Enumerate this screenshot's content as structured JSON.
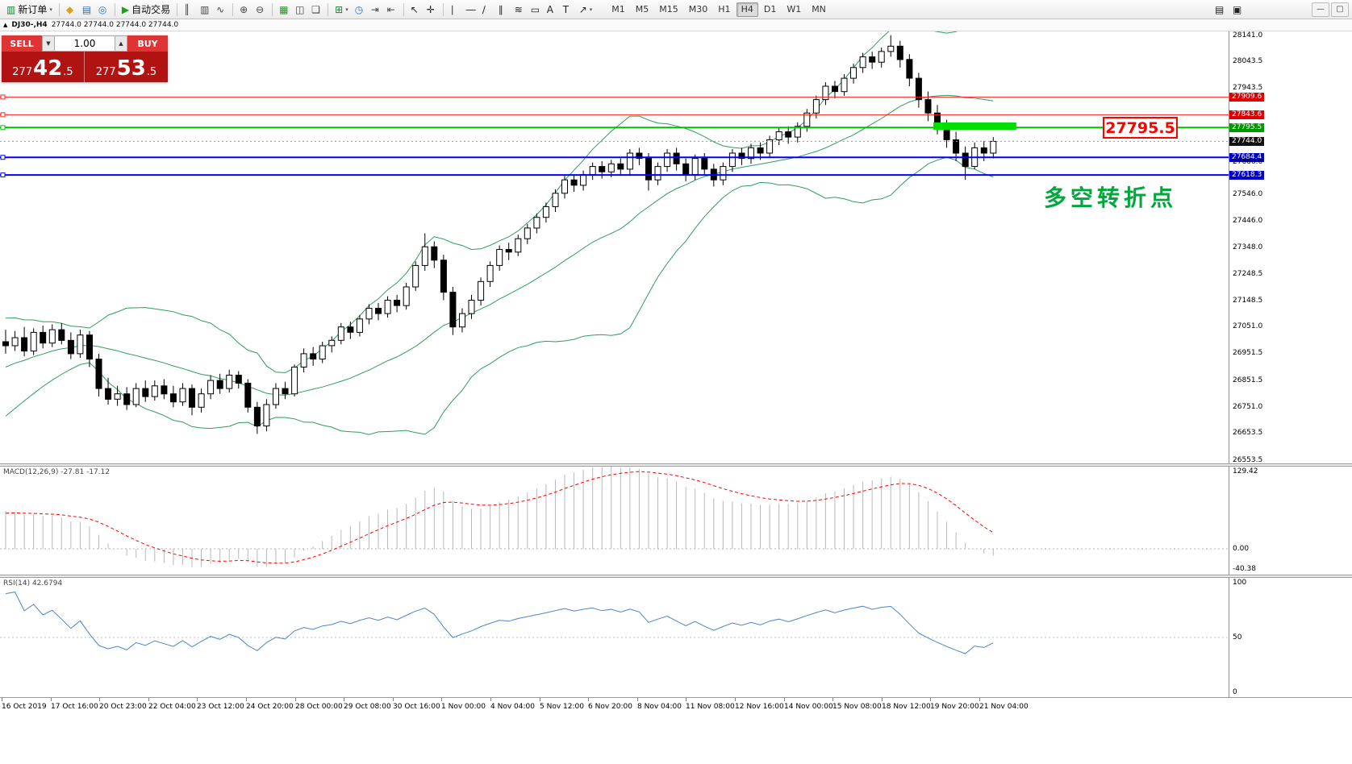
{
  "toolbar": {
    "groups": [
      {
        "items": [
          {
            "name": "new-order",
            "glyph": "▥",
            "color": "#1a7f37",
            "label": "新订单",
            "dropdown": true
          }
        ]
      },
      {
        "items": [
          {
            "name": "market-watch",
            "glyph": "◆",
            "color": "#d9a01f"
          },
          {
            "name": "data-window",
            "glyph": "▤",
            "color": "#2f6fb7"
          },
          {
            "name": "navigator",
            "glyph": "◎",
            "color": "#2f6fb7"
          }
        ]
      },
      {
        "items": [
          {
            "name": "auto-trading",
            "glyph": "▶",
            "color": "#17a317",
            "label": "自动交易"
          }
        ]
      },
      {
        "items": [
          {
            "name": "bar-chart-type",
            "glyph": "║",
            "color": "#444444"
          },
          {
            "name": "candlestick-chart-type",
            "glyph": "▥",
            "color": "#444444"
          },
          {
            "name": "line-chart-type",
            "glyph": "∿",
            "color": "#444444"
          }
        ]
      },
      {
        "items": [
          {
            "name": "zoom-in",
            "glyph": "⊕",
            "color": "#444444"
          },
          {
            "name": "zoom-out",
            "glyph": "⊖",
            "color": "#444444"
          }
        ]
      },
      {
        "items": [
          {
            "name": "grid",
            "glyph": "▦",
            "color": "#2f8f2f"
          },
          {
            "name": "tile-windows",
            "glyph": "◫",
            "color": "#444444"
          },
          {
            "name": "cascade-windows",
            "glyph": "❏",
            "color": "#444444"
          }
        ]
      },
      {
        "items": [
          {
            "name": "new-chart",
            "glyph": "⊞",
            "color": "#1a7f37",
            "dropdown": true
          },
          {
            "name": "period-clock",
            "glyph": "◷",
            "color": "#2f6fb7"
          },
          {
            "name": "auto-scroll",
            "glyph": "⇥",
            "color": "#444444"
          },
          {
            "name": "chart-shift",
            "glyph": "⇤",
            "color": "#444444"
          }
        ]
      },
      {
        "items": [
          {
            "name": "cursor",
            "glyph": "↖",
            "color": "#222222"
          },
          {
            "name": "crosshair",
            "glyph": "✛",
            "color": "#222222"
          }
        ]
      },
      {
        "items": [
          {
            "name": "vertical-line-tool",
            "glyph": "∣",
            "color": "#222222"
          },
          {
            "name": "horizontal-line-tool",
            "glyph": "―",
            "color": "#222222"
          },
          {
            "name": "trendline-tool",
            "glyph": "∕",
            "color": "#222222"
          },
          {
            "name": "channel-tool",
            "glyph": "∥",
            "color": "#222222"
          },
          {
            "name": "fibonacci-tool",
            "glyph": "≋",
            "color": "#222222"
          },
          {
            "name": "shapes-tool",
            "glyph": "▭",
            "color": "#222222"
          },
          {
            "name": "text-tool",
            "glyph": "A",
            "color": "#222222"
          },
          {
            "name": "text-label-tool",
            "glyph": "T",
            "color": "#222222"
          },
          {
            "name": "arrows-tool",
            "glyph": "↗",
            "color": "#222222",
            "dropdown": true
          }
        ]
      }
    ],
    "timeframes": {
      "active": "H4",
      "items": [
        "M1",
        "M5",
        "M15",
        "M30",
        "H1",
        "H4",
        "D1",
        "W1",
        "MN"
      ]
    },
    "right_items": [
      {
        "name": "print",
        "glyph": "▤"
      },
      {
        "name": "print-preview",
        "glyph": "▣"
      }
    ],
    "window_controls": [
      {
        "name": "minimize-window",
        "glyph": "—"
      },
      {
        "name": "restore-window",
        "glyph": "▢"
      }
    ]
  },
  "chart": {
    "title": {
      "marker": "▲",
      "text": "DJ30-,H4",
      "ohlc": "27744.0 27744.0 27744.0 27744.0"
    },
    "trade_panel": {
      "sell_label": "SELL",
      "buy_label": "BUY",
      "volume": "1.00",
      "spin_down": "▼",
      "spin_up": "▲",
      "sell_price": {
        "prefix": "277",
        "big": "42",
        "suffix": ".5"
      },
      "buy_price": {
        "prefix": "277",
        "big": "53",
        "suffix": ".5"
      }
    },
    "annotations": {
      "price_callout": "27795.5",
      "turning_point": "多空转折点"
    }
  },
  "panels": {
    "macd_label": "MACD(12,26,9) -27.81 -17.12",
    "rsi_label": "RSI(14) 42.6794"
  },
  "chart_data": {
    "type": "candlestick",
    "symbol": "DJ30-",
    "period": "H4",
    "ohlc_display": [
      27744.0,
      27744.0,
      27744.0,
      27744.0
    ],
    "bid": 27742.5,
    "ask": 27753.5,
    "candles": [
      [
        26995,
        27040,
        26950,
        26980
      ],
      [
        26980,
        27035,
        26960,
        27010
      ],
      [
        27010,
        27050,
        26940,
        26960
      ],
      [
        26960,
        27045,
        26945,
        27030
      ],
      [
        27030,
        27055,
        26970,
        26990
      ],
      [
        26990,
        27060,
        26975,
        27040
      ],
      [
        27040,
        27065,
        26985,
        27000
      ],
      [
        27000,
        27030,
        26930,
        26950
      ],
      [
        26950,
        27040,
        26935,
        27020
      ],
      [
        27020,
        27035,
        26900,
        26930
      ],
      [
        26930,
        26950,
        26790,
        26820
      ],
      [
        26820,
        26860,
        26760,
        26780
      ],
      [
        26780,
        26830,
        26755,
        26800
      ],
      [
        26800,
        26825,
        26740,
        26760
      ],
      [
        26760,
        26840,
        26750,
        26820
      ],
      [
        26820,
        26850,
        26770,
        26790
      ],
      [
        26790,
        26850,
        26775,
        26830
      ],
      [
        26830,
        26855,
        26780,
        26800
      ],
      [
        26800,
        26830,
        26750,
        26770
      ],
      [
        26770,
        26840,
        26755,
        26820
      ],
      [
        26820,
        26835,
        26720,
        26750
      ],
      [
        26750,
        26820,
        26730,
        26800
      ],
      [
        26800,
        26870,
        26780,
        26850
      ],
      [
        26850,
        26875,
        26800,
        26820
      ],
      [
        26820,
        26890,
        26805,
        26870
      ],
      [
        26870,
        26885,
        26820,
        26840
      ],
      [
        26840,
        26855,
        26730,
        26750
      ],
      [
        26750,
        26770,
        26650,
        26680
      ],
      [
        26680,
        26780,
        26660,
        26760
      ],
      [
        26760,
        26840,
        26745,
        26820
      ],
      [
        26820,
        26845,
        26780,
        26800
      ],
      [
        26800,
        26910,
        26790,
        26900
      ],
      [
        26900,
        26970,
        26880,
        26950
      ],
      [
        26950,
        26975,
        26905,
        26930
      ],
      [
        26930,
        26995,
        26915,
        26980
      ],
      [
        26980,
        27015,
        26955,
        27000
      ],
      [
        27000,
        27065,
        26985,
        27050
      ],
      [
        27050,
        27070,
        27005,
        27030
      ],
      [
        27030,
        27095,
        27015,
        27080
      ],
      [
        27080,
        27135,
        27060,
        27120
      ],
      [
        27120,
        27140,
        27075,
        27100
      ],
      [
        27100,
        27165,
        27085,
        27150
      ],
      [
        27150,
        27170,
        27105,
        27130
      ],
      [
        27130,
        27215,
        27115,
        27200
      ],
      [
        27200,
        27295,
        27185,
        27280
      ],
      [
        27280,
        27400,
        27260,
        27350
      ],
      [
        27350,
        27370,
        27270,
        27300
      ],
      [
        27300,
        27320,
        27150,
        27180
      ],
      [
        27180,
        27200,
        27020,
        27050
      ],
      [
        27050,
        27120,
        27030,
        27100
      ],
      [
        27100,
        27170,
        27080,
        27150
      ],
      [
        27150,
        27235,
        27130,
        27220
      ],
      [
        27220,
        27295,
        27200,
        27280
      ],
      [
        27280,
        27355,
        27260,
        27340
      ],
      [
        27340,
        27365,
        27300,
        27330
      ],
      [
        27330,
        27395,
        27315,
        27380
      ],
      [
        27380,
        27435,
        27360,
        27420
      ],
      [
        27420,
        27475,
        27400,
        27460
      ],
      [
        27460,
        27515,
        27440,
        27500
      ],
      [
        27500,
        27565,
        27480,
        27550
      ],
      [
        27550,
        27615,
        27530,
        27600
      ],
      [
        27600,
        27620,
        27555,
        27580
      ],
      [
        27580,
        27635,
        27560,
        27620
      ],
      [
        27620,
        27665,
        27600,
        27650
      ],
      [
        27650,
        27670,
        27605,
        27630
      ],
      [
        27630,
        27675,
        27610,
        27660
      ],
      [
        27660,
        27680,
        27615,
        27640
      ],
      [
        27640,
        27715,
        27620,
        27700
      ],
      [
        27700,
        27720,
        27655,
        27680
      ],
      [
        27680,
        27700,
        27560,
        27600
      ],
      [
        27600,
        27665,
        27580,
        27650
      ],
      [
        27650,
        27715,
        27630,
        27700
      ],
      [
        27700,
        27720,
        27635,
        27660
      ],
      [
        27660,
        27680,
        27595,
        27620
      ],
      [
        27620,
        27695,
        27600,
        27680
      ],
      [
        27680,
        27700,
        27620,
        27640
      ],
      [
        27640,
        27660,
        27575,
        27600
      ],
      [
        27600,
        27665,
        27580,
        27650
      ],
      [
        27650,
        27715,
        27630,
        27700
      ],
      [
        27700,
        27720,
        27655,
        27680
      ],
      [
        27680,
        27735,
        27660,
        27720
      ],
      [
        27720,
        27740,
        27675,
        27700
      ],
      [
        27700,
        27765,
        27685,
        27750
      ],
      [
        27750,
        27795,
        27730,
        27780
      ],
      [
        27780,
        27800,
        27735,
        27760
      ],
      [
        27760,
        27815,
        27740,
        27800
      ],
      [
        27800,
        27865,
        27780,
        27850
      ],
      [
        27850,
        27915,
        27830,
        27900
      ],
      [
        27900,
        27965,
        27880,
        27950
      ],
      [
        27950,
        27970,
        27905,
        27930
      ],
      [
        27930,
        27995,
        27915,
        27980
      ],
      [
        27980,
        28035,
        27960,
        28020
      ],
      [
        28020,
        28075,
        28000,
        28060
      ],
      [
        28060,
        28080,
        28015,
        28040
      ],
      [
        28040,
        28095,
        28020,
        28080
      ],
      [
        28080,
        28141,
        28060,
        28100
      ],
      [
        28100,
        28120,
        28020,
        28050
      ],
      [
        28050,
        28070,
        27950,
        27980
      ],
      [
        27980,
        28000,
        27870,
        27900
      ],
      [
        27900,
        27930,
        27820,
        27850
      ],
      [
        27850,
        27880,
        27770,
        27800
      ],
      [
        27800,
        27825,
        27720,
        27750
      ],
      [
        27750,
        27780,
        27670,
        27700
      ],
      [
        27700,
        27725,
        27600,
        27650
      ],
      [
        27650,
        27740,
        27640,
        27720
      ],
      [
        27720,
        27745,
        27670,
        27700
      ],
      [
        27700,
        27760,
        27680,
        27744
      ]
    ],
    "indicators": {
      "bollinger": {
        "period": 20,
        "deviation": 2,
        "color": "#2e9e5b"
      },
      "macd": {
        "params": [
          12,
          26,
          9
        ],
        "current_values": [
          -27.81,
          -17.12
        ],
        "axis_labels": [
          "129.42",
          "0.00",
          "-40.38"
        ],
        "histogram_color": "#b8b8b8",
        "signal_color": "#ff0000"
      },
      "rsi": {
        "period": 14,
        "current_value": 42.6794,
        "axis_labels": [
          "100",
          "50",
          "0"
        ],
        "line_color": "#4a86c8"
      }
    },
    "horizontal_lines": [
      {
        "price": 27909.6,
        "label": "27909.6",
        "color": "#ff2020",
        "badge_color": "#dd0000",
        "width": 1
      },
      {
        "price": 27843.6,
        "label": "27843.6",
        "color": "#ff2020",
        "badge_color": "#dd0000",
        "width": 1
      },
      {
        "price": 27795.5,
        "label": "27795.5",
        "color": "#00c000",
        "badge_color": "#009900",
        "width": 2
      },
      {
        "price": 27744.0,
        "label": "27744.0",
        "color": "#999999",
        "badge_color": "#111111",
        "width": 1,
        "style": "dotted",
        "role": "current-price"
      },
      {
        "price": 27684.4,
        "label": "27684.4",
        "color": "#0000ff",
        "badge_color": "#0000cc",
        "width": 2
      },
      {
        "price": 27618.3,
        "label": "27618.3",
        "color": "#0000ff",
        "badge_color": "#0000cc",
        "width": 2
      }
    ],
    "highlight_bar": {
      "from_bar": 100,
      "to_bar": 107,
      "price": 27801,
      "color": "#00df00"
    },
    "y_ticks": [
      "28141.0",
      "28043.5",
      "27943.5",
      "27666.0",
      "27546.0",
      "27446.0",
      "27348.0",
      "27248.5",
      "27148.5",
      "27051.0",
      "26951.5",
      "26851.5",
      "26751.0",
      "26653.5",
      "26553.5"
    ],
    "x_labels": [
      "16 Oct 2019",
      "17 Oct 16:00",
      "20 Oct 23:00",
      "22 Oct 04:00",
      "23 Oct 12:00",
      "24 Oct 20:00",
      "28 Oct 00:00",
      "29 Oct 08:00",
      "30 Oct 16:00",
      "1 Nov 00:00",
      "4 Nov 04:00",
      "5 Nov 12:00",
      "6 Nov 20:00",
      "8 Nov 04:00",
      "11 Nov 08:00",
      "12 Nov 16:00",
      "14 Nov 00:00",
      "15 Nov 08:00",
      "18 Nov 12:00",
      "19 Nov 20:00",
      "21 Nov 04:00"
    ]
  }
}
